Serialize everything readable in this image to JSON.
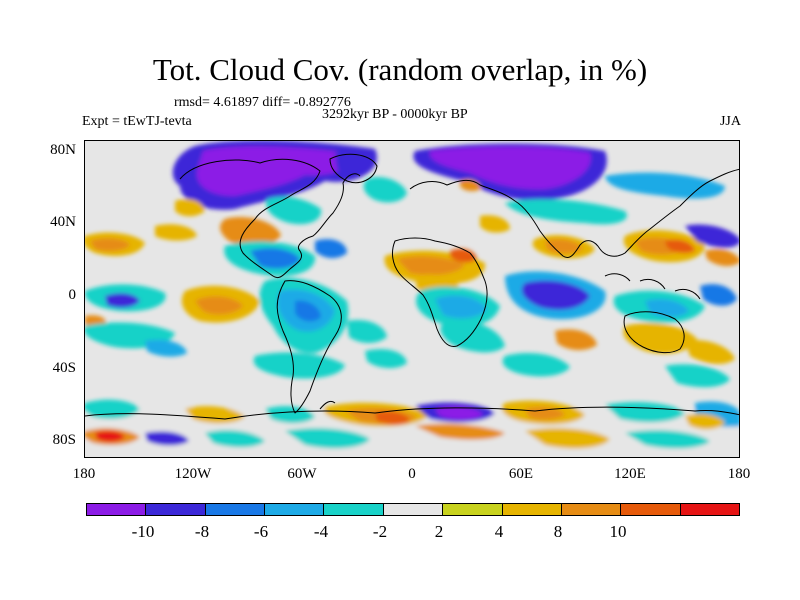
{
  "title": "Tot. Cloud Cov. (random overlap, in %)",
  "stats": "rmsd= 4.61897 diff= -0.892776",
  "period": "3292kyr BP - 0000kyr BP",
  "left_label": "Expt = tEwTJ-tevta",
  "right_label": "JJA",
  "y_ticks": [
    "80N",
    "40N",
    "0",
    "40S",
    "80S"
  ],
  "x_ticks": [
    "180",
    "120W",
    "60W",
    "0",
    "60E",
    "120E",
    "180"
  ],
  "colorbar": {
    "colors": [
      "#8c1ce6",
      "#3c28d8",
      "#1978e6",
      "#1eaae6",
      "#19d2c8",
      "#e6e6e6",
      "#c8d21e",
      "#e6b400",
      "#e68c14",
      "#e65a0a",
      "#e61414"
    ],
    "labels": [
      "-10",
      "-8",
      "-6",
      "-4",
      "-2",
      "2",
      "4",
      "8",
      "10"
    ]
  }
}
